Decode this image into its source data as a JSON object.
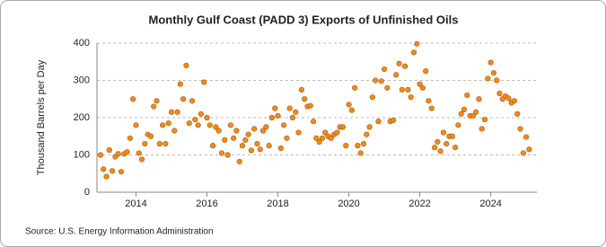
{
  "chart_data": {
    "type": "scatter",
    "title": "Monthly Gulf Coast (PADD 3) Exports of Unfinished Oils",
    "y_label": "Thousand Barrels per Day",
    "source": "Source: U.S. Energy Information Administration",
    "color": "#f08a1c",
    "grid": true,
    "xlim": [
      2012.9,
      2025.3
    ],
    "xticks": [
      2014,
      2016,
      2018,
      2020,
      2022,
      2024
    ],
    "ylim": [
      0,
      400
    ],
    "yticks": [
      0,
      100,
      200,
      300,
      400
    ],
    "x": [
      2013,
      2013.083,
      2013.167,
      2013.25,
      2013.333,
      2013.417,
      2013.5,
      2013.583,
      2013.667,
      2013.75,
      2013.833,
      2013.917,
      2014,
      2014.083,
      2014.167,
      2014.25,
      2014.333,
      2014.417,
      2014.5,
      2014.583,
      2014.667,
      2014.75,
      2014.833,
      2014.917,
      2015,
      2015.083,
      2015.167,
      2015.25,
      2015.333,
      2015.417,
      2015.5,
      2015.583,
      2015.667,
      2015.75,
      2015.833,
      2015.917,
      2016,
      2016.083,
      2016.167,
      2016.25,
      2016.333,
      2016.417,
      2016.5,
      2016.583,
      2016.667,
      2016.75,
      2016.833,
      2016.917,
      2017,
      2017.083,
      2017.167,
      2017.25,
      2017.333,
      2017.417,
      2017.5,
      2017.583,
      2017.667,
      2017.75,
      2017.833,
      2017.917,
      2018,
      2018.083,
      2018.167,
      2018.25,
      2018.333,
      2018.417,
      2018.5,
      2018.583,
      2018.667,
      2018.75,
      2018.833,
      2018.917,
      2019,
      2019.083,
      2019.167,
      2019.25,
      2019.333,
      2019.417,
      2019.5,
      2019.583,
      2019.667,
      2019.75,
      2019.833,
      2019.917,
      2020,
      2020.083,
      2020.167,
      2020.25,
      2020.333,
      2020.417,
      2020.5,
      2020.583,
      2020.667,
      2020.75,
      2020.833,
      2020.917,
      2021,
      2021.083,
      2021.167,
      2021.25,
      2021.333,
      2021.417,
      2021.5,
      2021.583,
      2021.667,
      2021.75,
      2021.833,
      2021.917,
      2022,
      2022.083,
      2022.167,
      2022.25,
      2022.333,
      2022.417,
      2022.5,
      2022.583,
      2022.667,
      2022.75,
      2022.833,
      2022.917,
      2023,
      2023.083,
      2023.167,
      2023.25,
      2023.333,
      2023.417,
      2023.5,
      2023.583,
      2023.667,
      2023.75,
      2023.833,
      2023.917,
      2024,
      2024.083,
      2024.167,
      2024.25,
      2024.333,
      2024.417,
      2024.5,
      2024.583,
      2024.667,
      2024.75,
      2024.833,
      2024.917,
      2025,
      2025.083
    ],
    "values": [
      100,
      62,
      42,
      113,
      57,
      95,
      103,
      55,
      103,
      108,
      145,
      250,
      180,
      105,
      88,
      130,
      155,
      150,
      230,
      245,
      130,
      180,
      130,
      185,
      215,
      165,
      215,
      290,
      250,
      340,
      185,
      245,
      195,
      180,
      210,
      295,
      200,
      180,
      125,
      175,
      165,
      105,
      140,
      100,
      180,
      145,
      165,
      82,
      125,
      140,
      155,
      112,
      170,
      130,
      115,
      165,
      175,
      125,
      200,
      225,
      205,
      118,
      180,
      145,
      225,
      200,
      215,
      160,
      275,
      250,
      230,
      232,
      190,
      145,
      135,
      145,
      160,
      150,
      145,
      155,
      160,
      175,
      175,
      125,
      235,
      220,
      280,
      125,
      105,
      130,
      155,
      175,
      255,
      300,
      190,
      298,
      330,
      280,
      190,
      193,
      315,
      345,
      275,
      338,
      275,
      255,
      375,
      398,
      290,
      280,
      325,
      245,
      225,
      120,
      135,
      110,
      160,
      130,
      150,
      150,
      120,
      180,
      210,
      222,
      260,
      205,
      205,
      215,
      250,
      170,
      195,
      305,
      348,
      320,
      300,
      265,
      250,
      258,
      252,
      240,
      245,
      210,
      170,
      105,
      148,
      115
    ]
  }
}
